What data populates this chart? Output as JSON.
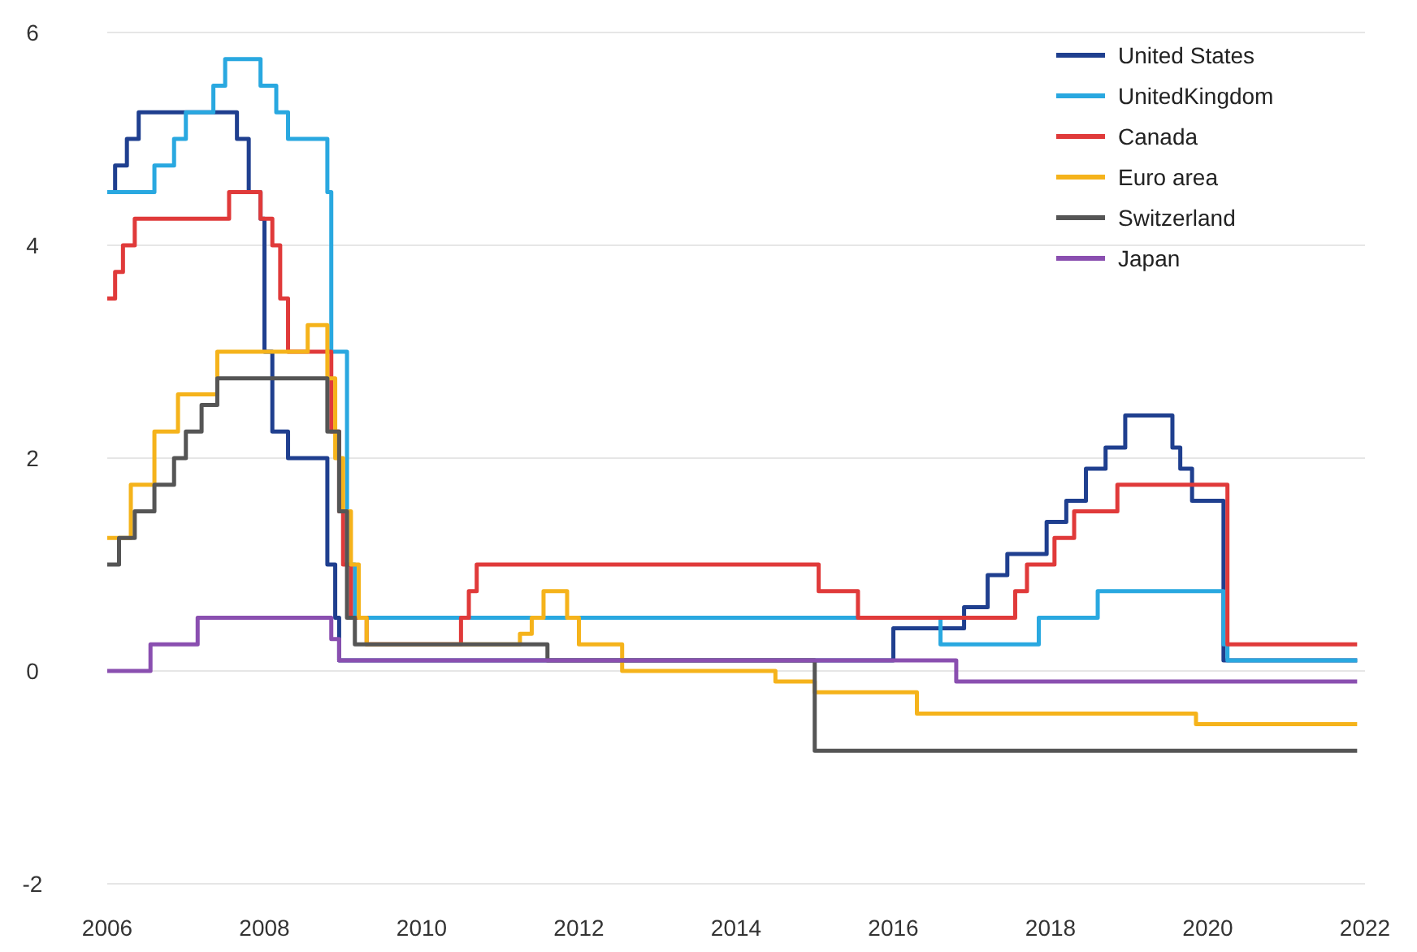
{
  "chart_data": {
    "type": "step",
    "xlim": [
      2006,
      2022
    ],
    "xticks": [
      2006,
      2008,
      2010,
      2012,
      2014,
      2016,
      2018,
      2020,
      2022
    ],
    "ylim": [
      -2,
      6
    ],
    "yticks": [
      -2,
      0,
      2,
      4,
      6
    ],
    "grid": "y",
    "legend": "top right",
    "line_style": "solid",
    "marker": "none",
    "series": [
      {
        "name": "United States",
        "color": "#1f3f8f",
        "x": [
          2006.0,
          2006.1,
          2006.25,
          2006.4,
          2007.65,
          2007.8,
          2007.95,
          2008.0,
          2008.1,
          2008.3,
          2008.8,
          2008.9,
          2008.95,
          2016.0,
          2016.9,
          2017.2,
          2017.45,
          2017.95,
          2018.2,
          2018.45,
          2018.7,
          2018.95,
          2019.55,
          2019.65,
          2019.8,
          2020.2,
          2021.9
        ],
        "values": [
          4.5,
          4.75,
          5.0,
          5.25,
          5.0,
          4.5,
          4.25,
          3.0,
          2.25,
          2.0,
          1.0,
          0.5,
          0.1,
          0.4,
          0.6,
          0.9,
          1.1,
          1.4,
          1.6,
          1.9,
          2.1,
          2.4,
          2.1,
          1.9,
          1.6,
          0.1,
          0.1
        ]
      },
      {
        "name": "UnitedKingdom",
        "color": "#29a8e0",
        "x": [
          2006.0,
          2006.6,
          2006.85,
          2007.0,
          2007.35,
          2007.5,
          2007.95,
          2008.15,
          2008.3,
          2008.8,
          2008.85,
          2009.05,
          2009.15,
          2016.6,
          2017.85,
          2018.6,
          2020.2,
          2020.25,
          2021.9
        ],
        "values": [
          4.5,
          4.75,
          5.0,
          5.25,
          5.5,
          5.75,
          5.5,
          5.25,
          5.0,
          4.5,
          3.0,
          1.0,
          0.5,
          0.25,
          0.5,
          0.75,
          0.25,
          0.1,
          0.1
        ]
      },
      {
        "name": "Canada",
        "color": "#e03a3a",
        "x": [
          2006.0,
          2006.1,
          2006.2,
          2006.35,
          2007.55,
          2007.95,
          2008.1,
          2008.2,
          2008.3,
          2008.85,
          2008.95,
          2009.0,
          2009.1,
          2009.3,
          2010.5,
          2010.6,
          2010.7,
          2015.05,
          2015.55,
          2017.55,
          2017.7,
          2018.05,
          2018.3,
          2018.85,
          2020.25,
          2021.9
        ],
        "values": [
          3.5,
          3.75,
          4.0,
          4.25,
          4.5,
          4.25,
          4.0,
          3.5,
          3.0,
          2.25,
          1.5,
          1.0,
          0.5,
          0.25,
          0.5,
          0.75,
          1.0,
          0.75,
          0.5,
          0.75,
          1.0,
          1.25,
          1.5,
          1.75,
          0.25,
          0.25
        ]
      },
      {
        "name": "Euro area",
        "color": "#f5b31b",
        "x": [
          2006.0,
          2006.3,
          2006.6,
          2006.9,
          2007.4,
          2008.55,
          2008.8,
          2008.9,
          2009.0,
          2009.1,
          2009.2,
          2009.3,
          2011.25,
          2011.4,
          2011.55,
          2011.85,
          2012.0,
          2012.55,
          2014.5,
          2015.0,
          2016.3,
          2019.85,
          2021.9
        ],
        "values": [
          1.25,
          1.75,
          2.25,
          2.6,
          3.0,
          3.25,
          2.75,
          2.0,
          1.5,
          1.0,
          0.5,
          0.25,
          0.35,
          0.5,
          0.75,
          0.5,
          0.25,
          0.0,
          -0.1,
          -0.2,
          -0.4,
          -0.5,
          -0.5
        ]
      },
      {
        "name": "Switzerland",
        "color": "#555555",
        "x": [
          2006.0,
          2006.15,
          2006.35,
          2006.6,
          2006.85,
          2007.0,
          2007.2,
          2007.4,
          2008.8,
          2008.95,
          2009.05,
          2009.15,
          2011.6,
          2015.0,
          2021.9
        ],
        "values": [
          1.0,
          1.25,
          1.5,
          1.75,
          2.0,
          2.25,
          2.5,
          2.75,
          2.25,
          1.5,
          0.5,
          0.25,
          0.1,
          -0.75,
          -0.75
        ]
      },
      {
        "name": "Japan",
        "color": "#8a4fb0",
        "x": [
          2006.0,
          2006.55,
          2007.15,
          2008.85,
          2008.95,
          2016.8,
          2021.9
        ],
        "values": [
          0.0,
          0.25,
          0.5,
          0.3,
          0.1,
          -0.1,
          -0.1
        ]
      }
    ]
  }
}
